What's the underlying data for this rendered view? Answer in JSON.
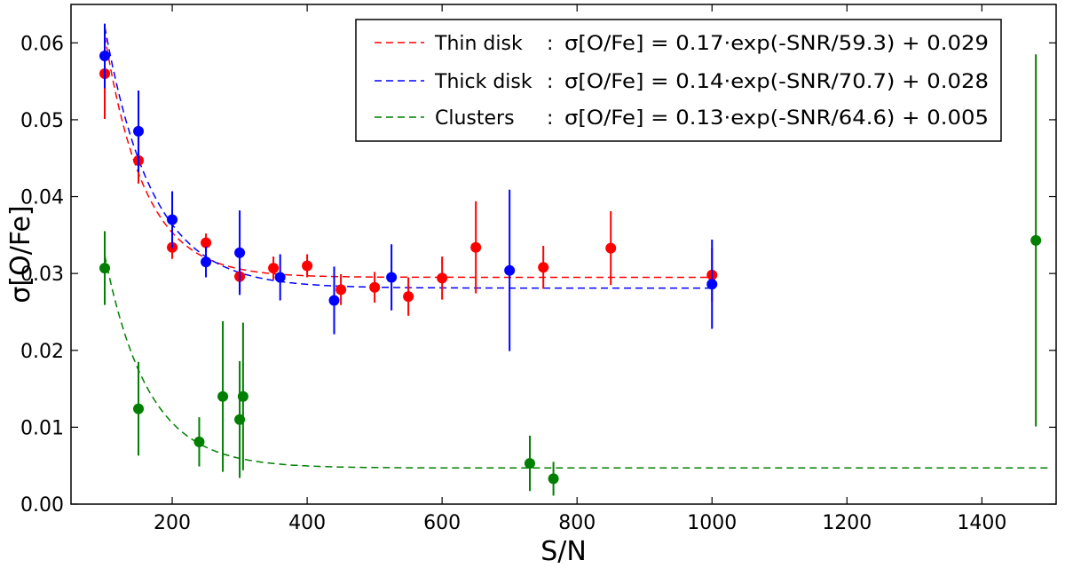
{
  "chart_data": {
    "type": "scatter",
    "title": "",
    "xlabel": "S/N",
    "ylabel": "σ[O/Fe]",
    "xlim": [
      50,
      1510
    ],
    "ylim": [
      0,
      0.065
    ],
    "xticks": [
      200,
      400,
      600,
      800,
      1000,
      1200,
      1400
    ],
    "yticks": [
      0.0,
      0.01,
      0.02,
      0.03,
      0.04,
      0.05,
      0.06
    ],
    "xtick_labels": [
      "200",
      "400",
      "600",
      "800",
      "1000",
      "1200",
      "1400"
    ],
    "ytick_labels": [
      "0.00",
      "0.01",
      "0.02",
      "0.03",
      "0.04",
      "0.05",
      "0.06"
    ],
    "legend_position": "top-right",
    "series": [
      {
        "name": "Thin disk",
        "color": "#ff0000",
        "fit_label": "Thin disk",
        "fit_formula": "σ[O/Fe] = 0.17·exp(-SNR/59.3) + 0.029",
        "fit": {
          "a": 0.17,
          "tau": 59.3,
          "c": 0.0295,
          "xmin": 100,
          "xmax": 1000
        },
        "points": [
          {
            "x": 100,
            "y": 0.056,
            "err": 0.0059
          },
          {
            "x": 150,
            "y": 0.0447,
            "err": 0.003
          },
          {
            "x": 200,
            "y": 0.0334,
            "err": 0.0015
          },
          {
            "x": 250,
            "y": 0.034,
            "err": 0.0012
          },
          {
            "x": 300,
            "y": 0.0296,
            "err": 0.002
          },
          {
            "x": 350,
            "y": 0.0307,
            "err": 0.0015
          },
          {
            "x": 400,
            "y": 0.031,
            "err": 0.0015
          },
          {
            "x": 450,
            "y": 0.0279,
            "err": 0.002
          },
          {
            "x": 500,
            "y": 0.0282,
            "err": 0.002
          },
          {
            "x": 550,
            "y": 0.027,
            "err": 0.0025
          },
          {
            "x": 600,
            "y": 0.0294,
            "err": 0.0028
          },
          {
            "x": 650,
            "y": 0.0334,
            "err": 0.006
          },
          {
            "x": 750,
            "y": 0.0308,
            "err": 0.0028
          },
          {
            "x": 850,
            "y": 0.0333,
            "err": 0.0048
          },
          {
            "x": 1000,
            "y": 0.0298,
            "err": 0.0035
          }
        ]
      },
      {
        "name": "Thick disk",
        "color": "#0000ff",
        "fit_label": "Thick disk",
        "fit_formula": "σ[O/Fe] = 0.14·exp(-SNR/70.7) + 0.028",
        "fit": {
          "a": 0.14,
          "tau": 70.7,
          "c": 0.0281,
          "xmin": 100,
          "xmax": 1000
        },
        "points": [
          {
            "x": 100,
            "y": 0.0583,
            "err": 0.0042
          },
          {
            "x": 150,
            "y": 0.0485,
            "err": 0.0053
          },
          {
            "x": 200,
            "y": 0.037,
            "err": 0.0037
          },
          {
            "x": 250,
            "y": 0.0315,
            "err": 0.002
          },
          {
            "x": 300,
            "y": 0.0327,
            "err": 0.0055
          },
          {
            "x": 360,
            "y": 0.0295,
            "err": 0.003
          },
          {
            "x": 440,
            "y": 0.0265,
            "err": 0.0044
          },
          {
            "x": 525,
            "y": 0.0295,
            "err": 0.0043
          },
          {
            "x": 700,
            "y": 0.0304,
            "err": 0.0105
          },
          {
            "x": 1000,
            "y": 0.0286,
            "err": 0.0058
          }
        ]
      },
      {
        "name": "Clusters",
        "color": "#007f00",
        "fit_label": "Clusters",
        "fit_formula": "σ[O/Fe] = 0.13·exp(-SNR/64.6) + 0.005",
        "fit": {
          "a": 0.13,
          "tau": 64.6,
          "c": 0.0047,
          "xmin": 100,
          "xmax": 1500
        },
        "points": [
          {
            "x": 100,
            "y": 0.0307,
            "err": 0.0048
          },
          {
            "x": 150,
            "y": 0.0124,
            "err": 0.0061
          },
          {
            "x": 240,
            "y": 0.0081,
            "err": 0.0032
          },
          {
            "x": 275,
            "y": 0.014,
            "err": 0.0098
          },
          {
            "x": 300,
            "y": 0.011,
            "err": 0.0076
          },
          {
            "x": 305,
            "y": 0.014,
            "err": 0.0096
          },
          {
            "x": 730,
            "y": 0.0053,
            "err": 0.0036
          },
          {
            "x": 765,
            "y": 0.0033,
            "err": 0.0022
          },
          {
            "x": 1480,
            "y": 0.0343,
            "err": 0.0242
          }
        ]
      }
    ]
  }
}
